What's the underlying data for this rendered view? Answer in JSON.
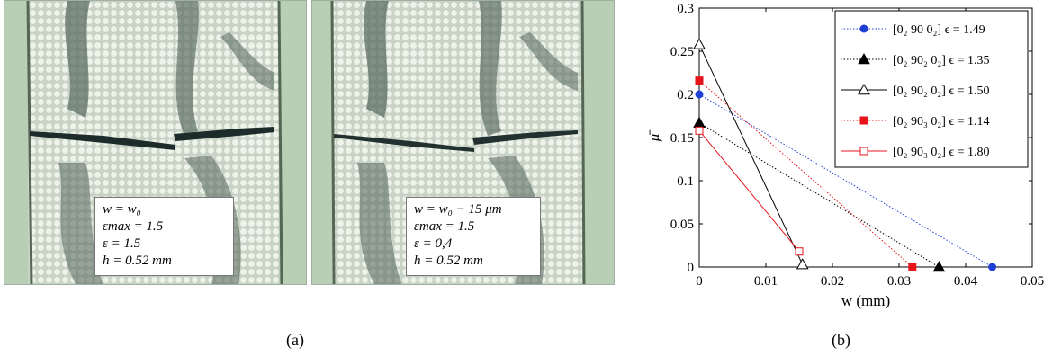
{
  "panel_a": {
    "left_image": {
      "lines": [
        "w = w₀",
        "εmax = 1.5",
        "ε = 1.5",
        "h = 0.52 mm"
      ]
    },
    "right_image": {
      "lines": [
        "w = w₀ − 15 μm",
        "εmax = 1.5",
        "ε = 0,4",
        "h = 0.52 mm"
      ]
    },
    "caption": "(a)"
  },
  "panel_b": {
    "caption": "(b)"
  },
  "chart_data": {
    "type": "line",
    "xlabel": "w (mm)",
    "ylabel": "μ̄",
    "xlim": [
      0,
      0.05
    ],
    "ylim": [
      0,
      0.3
    ],
    "x_ticks": [
      "0",
      "0.01",
      "0.02",
      "0.03",
      "0.04",
      "0.05"
    ],
    "y_ticks": [
      "0",
      "0.05",
      "0.1",
      "0.15",
      "0.2",
      "0.25",
      "0.3"
    ],
    "grid": false,
    "legend_position": "top-right",
    "series": [
      {
        "name": "[0₂ 90 0₂] ϵ = 1.49",
        "color": "#1f3fd6",
        "line": "dotted",
        "marker": "circle-filled",
        "points": [
          [
            0,
            0.2
          ],
          [
            0.044,
            0.0
          ]
        ]
      },
      {
        "name": "[0₂ 90₂ 0₂] ϵ = 1.35",
        "color": "#000000",
        "line": "dotted",
        "marker": "triangle-filled",
        "points": [
          [
            0,
            0.167
          ],
          [
            0.036,
            0.0
          ]
        ]
      },
      {
        "name": "[0₂ 90₂ 0₂] ϵ = 1.50",
        "color": "#000000",
        "line": "solid",
        "marker": "triangle-open",
        "points": [
          [
            0,
            0.258
          ],
          [
            0.0155,
            0.003
          ]
        ]
      },
      {
        "name": "[0₂ 90₃ 0₂] ϵ = 1.14",
        "color": "#e8141c",
        "line": "dotted",
        "marker": "square-filled",
        "points": [
          [
            0,
            0.216
          ],
          [
            0.032,
            0.0
          ]
        ]
      },
      {
        "name": "[0₂ 90₃ 0₂] ϵ = 1.80",
        "color": "#e8141c",
        "line": "solid",
        "marker": "square-open",
        "points": [
          [
            0,
            0.158
          ],
          [
            0.015,
            0.018
          ]
        ]
      }
    ]
  }
}
